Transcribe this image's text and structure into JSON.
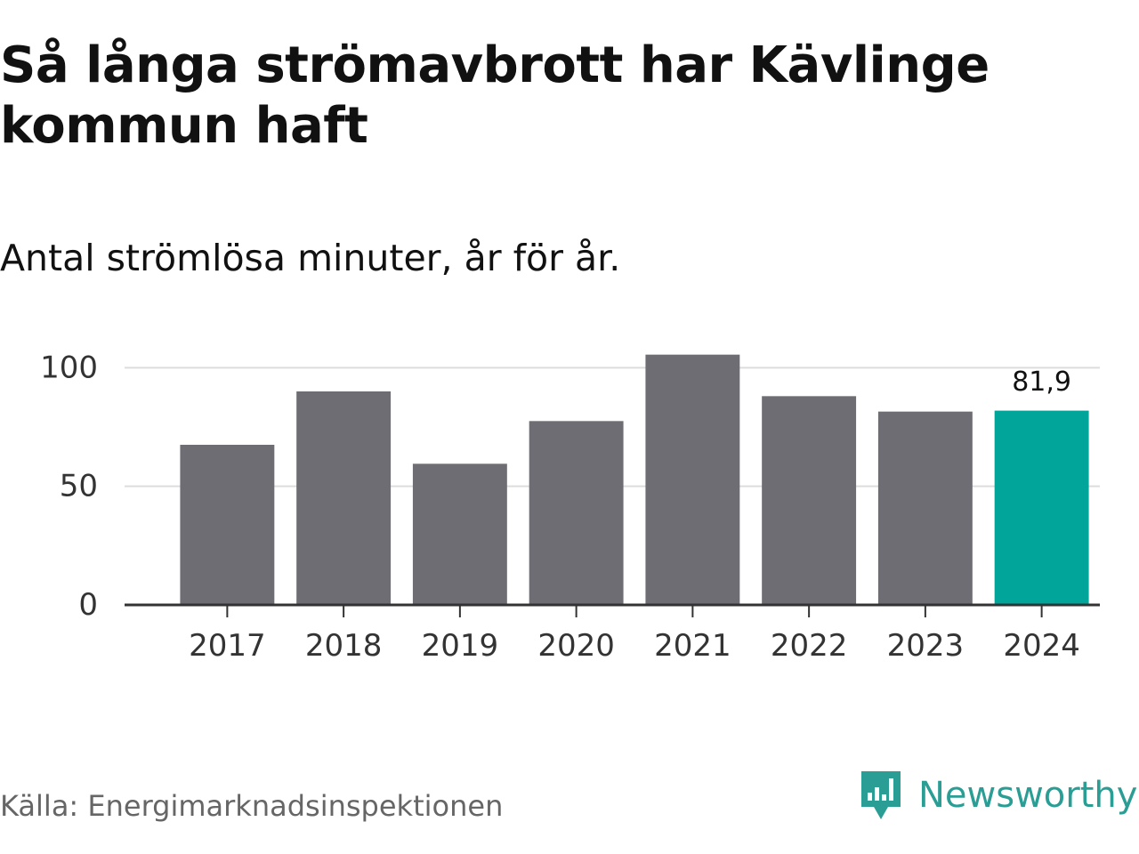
{
  "title": "Så långa strömavbrott har Kävlinge kommun haft",
  "subtitle": "Antal strömlösa minuter, år för år.",
  "source": "Källa: Energimarknadsinspektionen",
  "brand": "Newsworthy",
  "colors": {
    "bar": "#6e6d74",
    "highlight": "#02a59a",
    "grid": "#dddddd",
    "axis": "#333333",
    "logo": "#2a9d94"
  },
  "chart_data": {
    "type": "bar",
    "title": "Så långa strömavbrott har Kävlinge kommun haft",
    "subtitle": "Antal strömlösa minuter, år för år.",
    "categories": [
      "2017",
      "2018",
      "2019",
      "2020",
      "2021",
      "2022",
      "2023",
      "2024"
    ],
    "values": [
      67.5,
      90,
      59.5,
      77.5,
      105.5,
      88,
      81.5,
      81.9
    ],
    "highlight_index": 7,
    "data_labels": [
      {
        "index": 7,
        "text": "81,9"
      }
    ],
    "y_ticks": [
      {
        "value": 0,
        "label": "0"
      },
      {
        "value": 50,
        "label": "50"
      },
      {
        "value": 100,
        "label": "100"
      }
    ],
    "ylim": [
      0,
      108
    ],
    "xlabel": "",
    "ylabel": "",
    "grid": true
  }
}
